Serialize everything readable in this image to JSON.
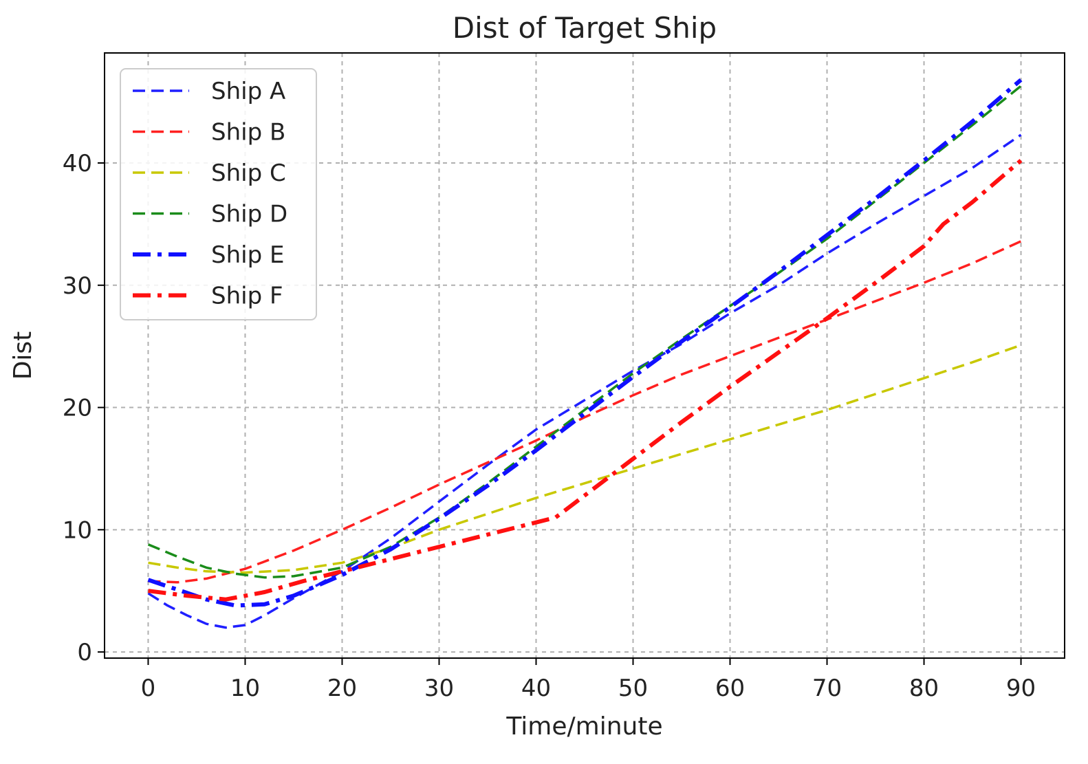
{
  "chart_data": {
    "type": "line",
    "title": "Dist of Target Ship",
    "xlabel": "Time/minute",
    "ylabel": "Dist",
    "xlim": [
      -4.5,
      94.5
    ],
    "ylim": [
      -0.5,
      49
    ],
    "xticks": [
      0,
      10,
      20,
      30,
      40,
      50,
      60,
      70,
      80,
      90
    ],
    "yticks": [
      0,
      10,
      20,
      30,
      40
    ],
    "grid": true,
    "legend_position": "upper-left",
    "series": [
      {
        "name": "Ship A",
        "color": "#1f1fff",
        "style": "dashed",
        "points": [
          [
            0,
            4.8
          ],
          [
            2,
            3.8
          ],
          [
            4,
            3.0
          ],
          [
            6,
            2.3
          ],
          [
            8,
            2.0
          ],
          [
            10,
            2.2
          ],
          [
            12,
            3.0
          ],
          [
            15,
            4.4
          ],
          [
            20,
            6.6
          ],
          [
            25,
            9.3
          ],
          [
            30,
            12.3
          ],
          [
            35,
            15.3
          ],
          [
            40,
            18.2
          ],
          [
            45,
            20.6
          ],
          [
            50,
            23.0
          ],
          [
            55,
            25.2
          ],
          [
            60,
            27.7
          ],
          [
            65,
            30.0
          ],
          [
            70,
            32.6
          ],
          [
            75,
            35.0
          ],
          [
            80,
            37.3
          ],
          [
            85,
            39.6
          ],
          [
            90,
            42.3
          ]
        ]
      },
      {
        "name": "Ship B",
        "color": "#ff2020",
        "style": "dashed",
        "points": [
          [
            0,
            5.8
          ],
          [
            3,
            5.7
          ],
          [
            6,
            6.0
          ],
          [
            10,
            6.8
          ],
          [
            15,
            8.3
          ],
          [
            20,
            10.0
          ],
          [
            25,
            11.8
          ],
          [
            30,
            13.7
          ],
          [
            35,
            15.5
          ],
          [
            40,
            17.3
          ],
          [
            45,
            19.2
          ],
          [
            50,
            21.0
          ],
          [
            55,
            22.7
          ],
          [
            60,
            24.2
          ],
          [
            65,
            25.7
          ],
          [
            70,
            27.2
          ],
          [
            75,
            28.7
          ],
          [
            80,
            30.2
          ],
          [
            85,
            31.8
          ],
          [
            90,
            33.6
          ]
        ]
      },
      {
        "name": "Ship C",
        "color": "#c8c800",
        "style": "dashed",
        "points": [
          [
            0,
            7.3
          ],
          [
            3,
            6.9
          ],
          [
            6,
            6.6
          ],
          [
            10,
            6.5
          ],
          [
            15,
            6.7
          ],
          [
            20,
            7.3
          ],
          [
            25,
            8.5
          ],
          [
            30,
            10.0
          ],
          [
            35,
            11.3
          ],
          [
            40,
            12.6
          ],
          [
            45,
            13.8
          ],
          [
            50,
            15.0
          ],
          [
            55,
            16.2
          ],
          [
            60,
            17.4
          ],
          [
            65,
            18.6
          ],
          [
            70,
            19.8
          ],
          [
            75,
            21.1
          ],
          [
            80,
            22.4
          ],
          [
            85,
            23.7
          ],
          [
            90,
            25.1
          ]
        ]
      },
      {
        "name": "Ship D",
        "color": "#1a8c1a",
        "style": "dashed",
        "points": [
          [
            0,
            8.8
          ],
          [
            3,
            7.8
          ],
          [
            6,
            6.9
          ],
          [
            9,
            6.4
          ],
          [
            12,
            6.1
          ],
          [
            15,
            6.2
          ],
          [
            20,
            6.9
          ],
          [
            25,
            8.6
          ],
          [
            30,
            11.0
          ],
          [
            35,
            13.8
          ],
          [
            40,
            16.8
          ],
          [
            45,
            19.8
          ],
          [
            50,
            22.8
          ],
          [
            55,
            25.6
          ],
          [
            60,
            28.3
          ],
          [
            65,
            31.0
          ],
          [
            70,
            33.8
          ],
          [
            75,
            36.9
          ],
          [
            80,
            40.0
          ],
          [
            85,
            43.1
          ],
          [
            90,
            46.3
          ]
        ]
      },
      {
        "name": "Ship E",
        "color": "#1010ff",
        "style": "dashdot",
        "points": [
          [
            0,
            5.9
          ],
          [
            3,
            5.1
          ],
          [
            6,
            4.3
          ],
          [
            9,
            3.8
          ],
          [
            12,
            3.9
          ],
          [
            15,
            4.6
          ],
          [
            20,
            6.3
          ],
          [
            25,
            8.4
          ],
          [
            30,
            10.9
          ],
          [
            35,
            13.6
          ],
          [
            40,
            16.5
          ],
          [
            45,
            19.5
          ],
          [
            50,
            22.5
          ],
          [
            55,
            25.4
          ],
          [
            60,
            28.2
          ],
          [
            65,
            31.1
          ],
          [
            70,
            34.1
          ],
          [
            75,
            37.1
          ],
          [
            80,
            40.2
          ],
          [
            85,
            43.4
          ],
          [
            90,
            46.8
          ]
        ]
      },
      {
        "name": "Ship F",
        "color": "#ff1010",
        "style": "dashdot",
        "points": [
          [
            0,
            5.0
          ],
          [
            4,
            4.6
          ],
          [
            8,
            4.3
          ],
          [
            12,
            4.9
          ],
          [
            16,
            5.8
          ],
          [
            20,
            6.6
          ],
          [
            25,
            7.6
          ],
          [
            30,
            8.6
          ],
          [
            35,
            9.6
          ],
          [
            40,
            10.6
          ],
          [
            42,
            11.0
          ],
          [
            45,
            12.8
          ],
          [
            50,
            15.8
          ],
          [
            55,
            18.8
          ],
          [
            60,
            21.7
          ],
          [
            65,
            24.5
          ],
          [
            70,
            27.3
          ],
          [
            75,
            30.2
          ],
          [
            80,
            33.2
          ],
          [
            82,
            35.0
          ],
          [
            85,
            36.8
          ],
          [
            90,
            40.2
          ]
        ]
      }
    ]
  }
}
